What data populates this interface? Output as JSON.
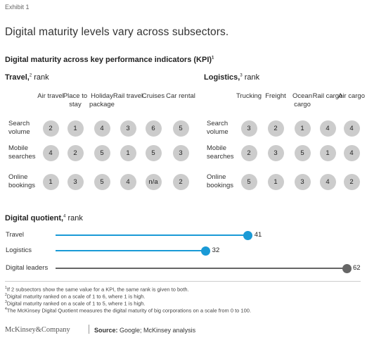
{
  "exhibit": "Exhibit 1",
  "title": "Digital maturity levels vary across subsectors.",
  "subtitle": "Digital maturity across key performance indicators (KPI)",
  "subtitle_sup": "1",
  "travel": {
    "heading": "Travel,",
    "sup": "2",
    "rank": " rank",
    "columns": [
      "Air travel",
      "Place to stay",
      "Holiday package",
      "Rail travel",
      "Cruises",
      "Car rental"
    ],
    "rows": [
      {
        "label": "Search volume",
        "values": [
          "2",
          "1",
          "4",
          "3",
          "6",
          "5"
        ]
      },
      {
        "label": "Mobile searches",
        "values": [
          "4",
          "2",
          "5",
          "1",
          "5",
          "3"
        ]
      },
      {
        "label": "Online bookings",
        "values": [
          "1",
          "3",
          "5",
          "4",
          "n/a",
          "2"
        ]
      }
    ]
  },
  "logistics": {
    "heading": "Logistics,",
    "sup": "3",
    "rank": " rank",
    "columns": [
      "Trucking",
      "Freight",
      "Ocean cargo",
      "Rail cargo",
      "Air cargo"
    ],
    "rows": [
      {
        "label": "Search volume",
        "values": [
          "3",
          "2",
          "1",
          "4",
          "4"
        ]
      },
      {
        "label": "Mobile searches",
        "values": [
          "2",
          "3",
          "5",
          "1",
          "4"
        ]
      },
      {
        "label": "Online bookings",
        "values": [
          "5",
          "1",
          "3",
          "4",
          "2"
        ]
      }
    ]
  },
  "digital_quotient": {
    "heading": "Digital quotient,",
    "sup": "4",
    "rank": " rank"
  },
  "chart_data": {
    "type": "bar",
    "scale": [
      0,
      100
    ],
    "series": [
      {
        "name": "Travel",
        "value": 41,
        "color": "#1a9ad6"
      },
      {
        "name": "Logistics",
        "value": 32,
        "color": "#1a9ad6"
      },
      {
        "name": "Digital leaders",
        "value": 62,
        "color": "#666666"
      }
    ]
  },
  "footnotes": [
    {
      "sup": "1",
      "text": "If 2 subsectors show the same value for a KPI, the same rank is given to both."
    },
    {
      "sup": "2",
      "text": "Digital maturity ranked on a scale of 1 to 6, where 1 is high."
    },
    {
      "sup": "3",
      "text": "Digital maturity ranked on a scale of 1 to 5, where 1 is high."
    },
    {
      "sup": "4",
      "text": "The McKinsey Digital Quotient measures the digital maturity of big corporations on a scale from 0 to 100."
    }
  ],
  "brand": "McKinsey&Company",
  "source_label": "Source:",
  "source_text": " Google; McKinsey analysis"
}
